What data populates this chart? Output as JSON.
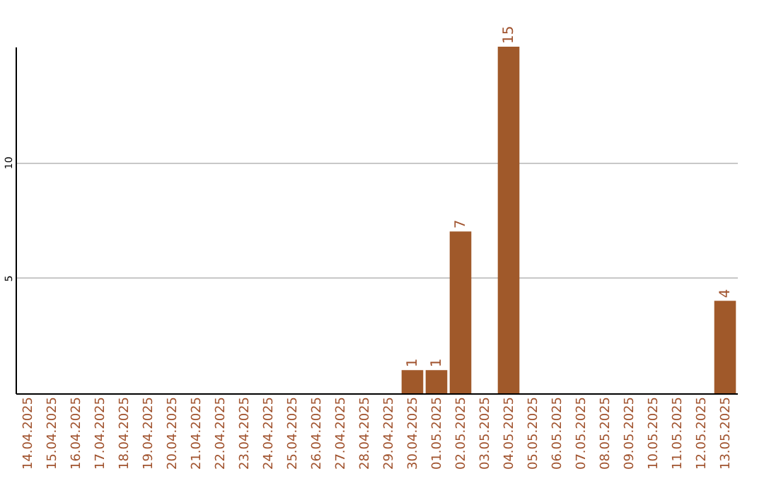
{
  "chart_data": {
    "type": "bar",
    "categories": [
      "14.04.2025",
      "15.04.2025",
      "16.04.2025",
      "17.04.2025",
      "18.04.2025",
      "19.04.2025",
      "20.04.2025",
      "21.04.2025",
      "22.04.2025",
      "23.04.2025",
      "24.04.2025",
      "25.04.2025",
      "26.04.2025",
      "27.04.2025",
      "28.04.2025",
      "29.04.2025",
      "30.04.2025",
      "01.05.2025",
      "02.05.2025",
      "03.05.2025",
      "04.05.2025",
      "05.05.2025",
      "06.05.2025",
      "07.05.2025",
      "08.05.2025",
      "09.05.2025",
      "10.05.2025",
      "11.05.2025",
      "12.05.2025",
      "13.05.2025"
    ],
    "values": [
      0,
      0,
      0,
      0,
      0,
      0,
      0,
      0,
      0,
      0,
      0,
      0,
      0,
      0,
      0,
      0,
      1,
      1,
      7,
      0,
      15,
      0,
      0,
      0,
      0,
      0,
      0,
      0,
      0,
      4
    ],
    "value_labels": [
      null,
      null,
      null,
      null,
      null,
      null,
      null,
      null,
      null,
      null,
      null,
      null,
      null,
      null,
      null,
      null,
      "1",
      "1",
      "7",
      null,
      "15",
      null,
      null,
      null,
      null,
      null,
      null,
      null,
      null,
      "4"
    ],
    "color": "#a0592a",
    "ylim": [
      0,
      15
    ],
    "yticks": [
      5,
      10
    ],
    "grid": "y"
  }
}
